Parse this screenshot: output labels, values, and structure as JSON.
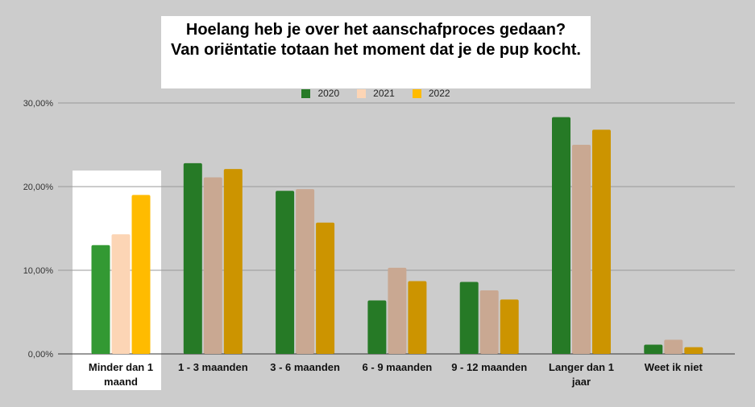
{
  "chart_data": {
    "type": "bar",
    "title": "Hoelang heb je over het aanschafproces gedaan?",
    "subtitle": "Van oriëntatie totaan het moment dat je de pup kocht.",
    "categories": [
      [
        "Minder dan 1",
        "maand"
      ],
      [
        "1 - 3 maanden"
      ],
      [
        "3 - 6 maanden"
      ],
      [
        "6 - 9 maanden"
      ],
      [
        "9 - 12 maanden"
      ],
      [
        "Langer dan 1",
        "jaar"
      ],
      [
        "Weet ik niet"
      ]
    ],
    "highlighted_category": 0,
    "series": [
      {
        "name": "2020",
        "color": "#267a26",
        "highlight_color": "#339933",
        "values": [
          13.0,
          22.8,
          19.5,
          6.4,
          8.6,
          28.3,
          1.1
        ]
      },
      {
        "name": "2021",
        "color": "#c9a892",
        "highlight_color": "#fcd5b5",
        "values": [
          14.3,
          21.1,
          19.7,
          10.3,
          7.6,
          25.0,
          1.7
        ]
      },
      {
        "name": "2022",
        "color": "#cc9400",
        "highlight_color": "#ffbb00",
        "values": [
          19.0,
          22.1,
          15.7,
          8.7,
          6.5,
          26.8,
          0.8
        ]
      }
    ],
    "y_ticks": [
      "0,00%",
      "10,00%",
      "20,00%",
      "30,00%"
    ],
    "ylim": [
      0,
      30
    ],
    "xlabel": "",
    "ylabel": "",
    "grid": true,
    "legend_position": "top-center"
  }
}
